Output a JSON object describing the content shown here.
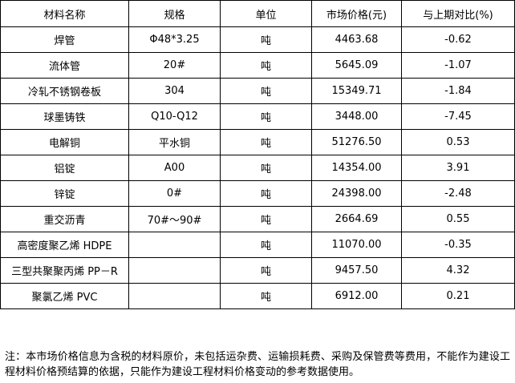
{
  "table": {
    "header": [
      "材料名称",
      "规格",
      "单位",
      "市场价格(元)",
      "与上期对比(%)"
    ],
    "rows": [
      {
        "name": "焊管",
        "spec": "Φ48*3.25",
        "unit": "吨",
        "price": "4463.68",
        "change": "-0.62"
      },
      {
        "name": "流体管",
        "spec": "20#",
        "unit": "吨",
        "price": "5645.09",
        "change": "-1.07"
      },
      {
        "name": "冷轧不锈钢卷板",
        "spec": "304",
        "unit": "吨",
        "price": "15349.71",
        "change": "-1.84"
      },
      {
        "name": "球墨铸铁",
        "spec": "Q10-Q12",
        "unit": "吨",
        "price": "3448.00",
        "change": "-7.45"
      },
      {
        "name": "电解铜",
        "spec": "平水铜",
        "unit": "吨",
        "price": "51276.50",
        "change": "0.53"
      },
      {
        "name": "铝锭",
        "spec": "A00",
        "unit": "吨",
        "price": "14354.00",
        "change": "3.91"
      },
      {
        "name": "锌锭",
        "spec": "0#",
        "unit": "吨",
        "price": "24398.00",
        "change": "-2.48"
      },
      {
        "name": "重交沥青",
        "spec": "70#～90#",
        "unit": "吨",
        "price": "2664.69",
        "change": "0.55"
      },
      {
        "name": "高密度聚乙烯 HDPE",
        "unit": "吨",
        "price": "11070.00",
        "change": "-0.35"
      },
      {
        "name": "三型共聚聚丙烯 PP－R",
        "unit": "吨",
        "price": "9457.50",
        "change": "4.32"
      },
      {
        "name": "聚氯乙烯 PVC",
        "unit": "吨",
        "price": "6912.00",
        "change": "0.21"
      }
    ]
  },
  "note": "注：本市场价格信息为含税的材料原价，未包括运杂费、运输损耗费、采购及保管费等费用，不能作为建设工程材料价格预结算的依据，只能作为建设工程材料价格变动的参考数据使用。"
}
